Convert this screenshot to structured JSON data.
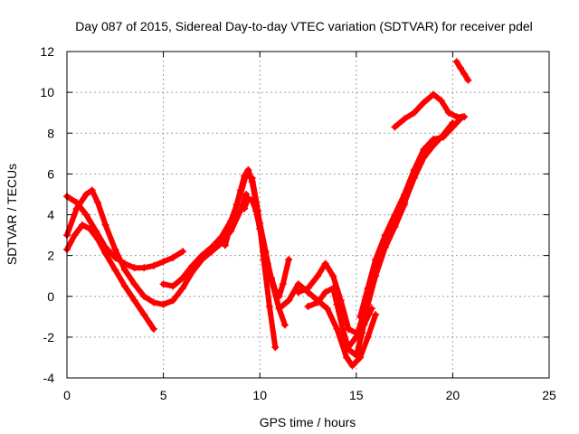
{
  "chart_data": {
    "type": "scatter",
    "title": "Day 087 of 2015, Sidereal Day-to-day VTEC variation (SDTVAR) for receiver pdel",
    "xlabel": "GPS time / hours",
    "ylabel": "SDTVAR / TECUs",
    "xlim": [
      0,
      25
    ],
    "ylim": [
      -4,
      12
    ],
    "xticks": [
      0,
      5,
      10,
      15,
      20,
      25
    ],
    "yticks": [
      -4,
      -2,
      0,
      2,
      4,
      6,
      8,
      10,
      12
    ],
    "grid": true,
    "marker": "+",
    "color": "#ff0000",
    "series": [
      {
        "x": [
          0.0,
          0.5,
          1.0,
          1.5,
          2.0,
          2.5,
          3.0,
          3.5,
          4.0,
          4.5,
          5.0,
          5.5,
          6.0
        ],
        "y": [
          4.9,
          4.6,
          4.0,
          3.2,
          2.4,
          1.9,
          1.6,
          1.4,
          1.4,
          1.5,
          1.7,
          1.9,
          2.2
        ]
      },
      {
        "x": [
          0.0,
          0.4,
          0.8,
          1.2,
          1.6,
          2.0,
          2.5,
          3.0,
          3.5,
          4.0,
          4.5
        ],
        "y": [
          2.3,
          3.0,
          3.5,
          3.3,
          2.8,
          2.1,
          1.3,
          0.5,
          -0.2,
          -0.9,
          -1.6
        ]
      },
      {
        "x": [
          0.0,
          0.5,
          1.0,
          1.3,
          1.6,
          2.0,
          2.5,
          3.0,
          3.5,
          4.0,
          4.5,
          5.0,
          5.5,
          6.0,
          6.5,
          7.0,
          7.5,
          8.0,
          8.5,
          9.0,
          9.3
        ],
        "y": [
          3.0,
          4.3,
          5.0,
          5.2,
          4.6,
          3.5,
          2.3,
          1.3,
          0.6,
          0.0,
          -0.3,
          -0.4,
          -0.2,
          0.4,
          1.2,
          1.8,
          2.2,
          2.6,
          3.2,
          4.2,
          5.0
        ]
      },
      {
        "x": [
          5.0,
          5.5,
          6.0,
          6.5,
          7.0,
          7.5,
          8.0,
          8.5,
          9.0,
          9.3,
          9.6,
          9.9,
          10.2,
          10.5,
          10.8
        ],
        "y": [
          0.6,
          0.5,
          0.9,
          1.5,
          2.0,
          2.4,
          2.9,
          3.7,
          5.0,
          6.0,
          5.8,
          4.2,
          1.8,
          -0.5,
          -2.5
        ]
      },
      {
        "x": [
          8.2,
          8.5,
          8.8,
          9.0,
          9.2,
          9.4,
          9.6,
          9.8,
          10.0,
          10.3,
          10.6,
          11.0,
          11.3
        ],
        "y": [
          2.5,
          3.5,
          4.5,
          5.2,
          5.9,
          6.2,
          5.6,
          4.6,
          3.6,
          2.2,
          0.8,
          -0.6,
          -1.4
        ]
      },
      {
        "x": [
          9.2,
          9.4,
          9.6,
          9.8,
          10.0,
          10.2,
          10.4,
          10.6,
          10.8,
          11.0,
          11.2,
          11.5
        ],
        "y": [
          4.3,
          4.8,
          4.7,
          4.2,
          3.3,
          2.4,
          1.6,
          0.9,
          0.3,
          0.0,
          0.6,
          1.8
        ]
      },
      {
        "x": [
          11.0,
          11.5,
          12.0,
          12.5,
          13.0,
          13.5,
          14.0,
          14.5,
          14.8,
          15.2,
          15.6,
          16.0
        ],
        "y": [
          -0.6,
          -0.2,
          0.6,
          0.2,
          -0.2,
          -0.6,
          -1.6,
          -3.0,
          -3.4,
          -3.0,
          -2.0,
          -0.9
        ]
      },
      {
        "x": [
          12.0,
          12.5,
          13.0,
          13.4,
          13.8,
          14.2,
          14.6,
          15.0,
          15.4,
          15.8
        ],
        "y": [
          0.2,
          0.4,
          1.0,
          1.6,
          1.0,
          -0.2,
          -1.6,
          -1.8,
          -1.4,
          -0.6
        ]
      },
      {
        "x": [
          12.5,
          13.0,
          13.4,
          13.8,
          14.0,
          14.3,
          14.6,
          15.0,
          15.3,
          15.6,
          16.0,
          16.5,
          17.0,
          17.5
        ],
        "y": [
          -0.5,
          -0.3,
          0.2,
          0.4,
          -0.4,
          -1.6,
          -2.6,
          -2.9,
          -1.8,
          -0.4,
          1.0,
          2.4,
          3.4,
          4.5
        ]
      },
      {
        "x": [
          14.5,
          15.0,
          15.5,
          16.0,
          16.5,
          17.0,
          17.5,
          18.0,
          18.5,
          19.0,
          19.5,
          20.0,
          20.5
        ],
        "y": [
          -2.6,
          -2.0,
          -0.5,
          1.5,
          3.0,
          4.0,
          5.0,
          6.2,
          7.2,
          7.7,
          7.8,
          8.3,
          8.8
        ]
      },
      {
        "x": [
          15.2,
          15.6,
          16.0,
          16.5,
          17.0,
          17.5,
          18.0,
          18.5,
          19.0,
          19.5,
          20.0
        ],
        "y": [
          -1.0,
          0.4,
          1.8,
          3.0,
          3.8,
          4.6,
          5.8,
          6.8,
          7.4,
          7.9,
          8.5
        ]
      },
      {
        "x": [
          17.0,
          17.5,
          18.0,
          18.5,
          19.0,
          19.4,
          19.8,
          20.2,
          20.6
        ],
        "y": [
          8.3,
          8.7,
          9.0,
          9.5,
          9.9,
          9.6,
          9.0,
          8.8,
          8.8
        ]
      },
      {
        "x": [
          20.2,
          20.4,
          20.6,
          20.8
        ],
        "y": [
          11.5,
          11.2,
          10.9,
          10.6
        ]
      }
    ]
  }
}
